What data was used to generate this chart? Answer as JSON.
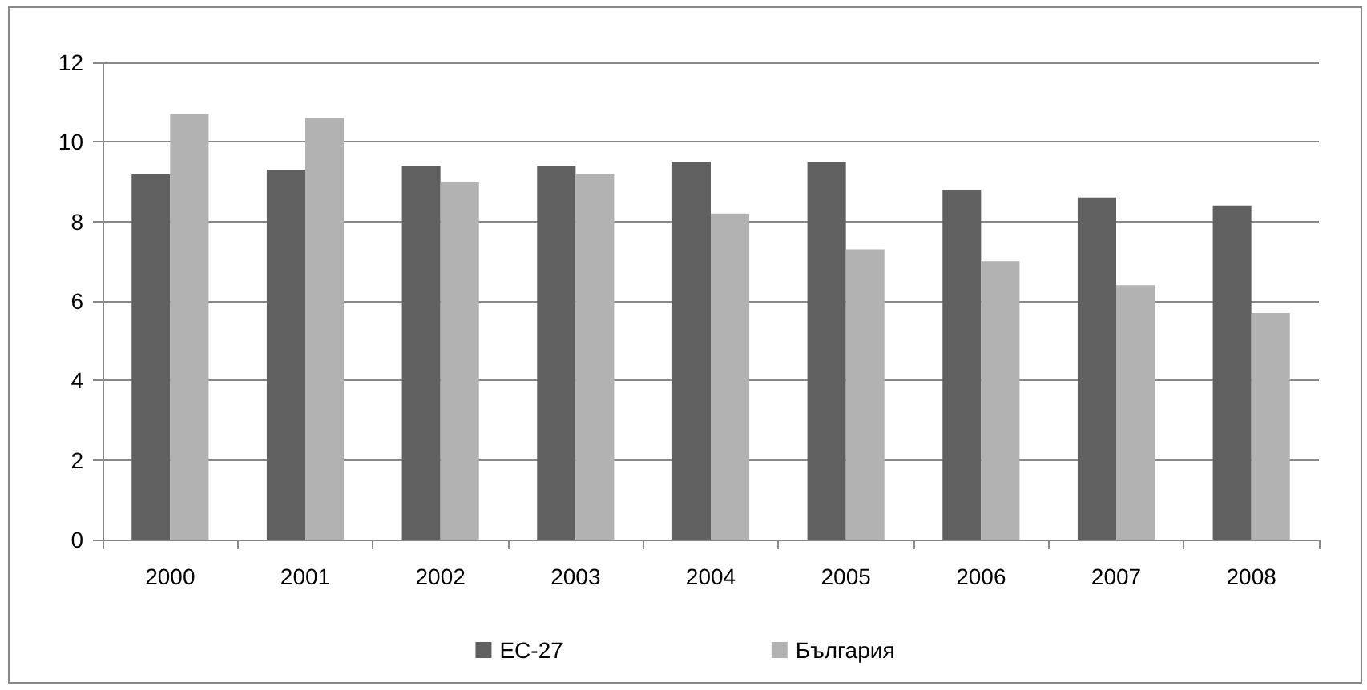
{
  "chart_data": {
    "type": "bar",
    "categories": [
      "2000",
      "2001",
      "2002",
      "2003",
      "2004",
      "2005",
      "2006",
      "2007",
      "2008"
    ],
    "series": [
      {
        "name": "ЕС-27",
        "color": "#606060",
        "values": [
          9.2,
          9.3,
          9.4,
          9.4,
          9.5,
          9.5,
          8.8,
          8.6,
          8.4
        ]
      },
      {
        "name": "България",
        "color": "#b2b2b2",
        "values": [
          10.7,
          10.6,
          9.0,
          9.2,
          8.2,
          7.3,
          7.0,
          6.4,
          5.7
        ]
      }
    ],
    "ylim": [
      0,
      12
    ],
    "yticks": [
      0,
      2,
      4,
      6,
      8,
      10,
      12
    ],
    "grid": "y",
    "legend": "bottom"
  }
}
